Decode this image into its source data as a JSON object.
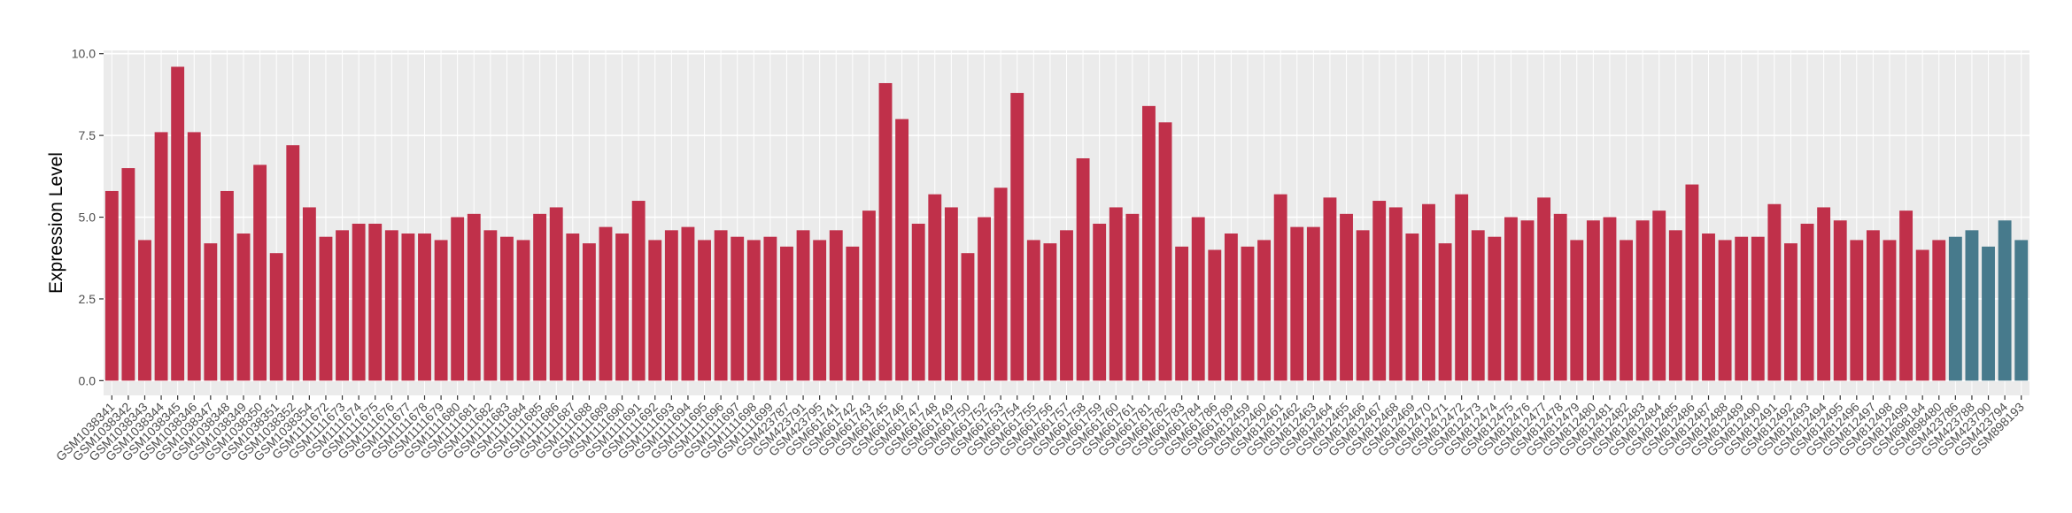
{
  "chart_data": {
    "type": "bar",
    "y_label": "Expression Level",
    "categories": [
      "GSM1038341",
      "GSM1038342",
      "GSM1038343",
      "GSM1038344",
      "GSM1038345",
      "GSM1038346",
      "GSM1038347",
      "GSM1038348",
      "GSM1038349",
      "GSM1038350",
      "GSM1038351",
      "GSM1038352",
      "GSM1038354",
      "GSM1111672",
      "GSM1111673",
      "GSM1111674",
      "GSM1111675",
      "GSM1111676",
      "GSM1111677",
      "GSM1111678",
      "GSM1111679",
      "GSM1111680",
      "GSM1111681",
      "GSM1111682",
      "GSM1111683",
      "GSM1111684",
      "GSM1111685",
      "GSM1111686",
      "GSM1111687",
      "GSM1111688",
      "GSM1111689",
      "GSM1111690",
      "GSM1111691",
      "GSM1111692",
      "GSM1111693",
      "GSM1111694",
      "GSM1111695",
      "GSM1111696",
      "GSM1111697",
      "GSM1111698",
      "GSM1111699",
      "GSM423787",
      "GSM423791",
      "GSM423795",
      "GSM661741",
      "GSM661742",
      "GSM661743",
      "GSM661745",
      "GSM661746",
      "GSM661747",
      "GSM661748",
      "GSM661749",
      "GSM661750",
      "GSM661752",
      "GSM661753",
      "GSM661754",
      "GSM661755",
      "GSM661756",
      "GSM661757",
      "GSM661758",
      "GSM661759",
      "GSM661760",
      "GSM661761",
      "GSM661781",
      "GSM661782",
      "GSM661783",
      "GSM661784",
      "GSM661786",
      "GSM661789",
      "GSM812459",
      "GSM812460",
      "GSM812461",
      "GSM812462",
      "GSM812463",
      "GSM812464",
      "GSM812465",
      "GSM812466",
      "GSM812467",
      "GSM812468",
      "GSM812469",
      "GSM812470",
      "GSM812471",
      "GSM812472",
      "GSM812473",
      "GSM812474",
      "GSM812475",
      "GSM812476",
      "GSM812477",
      "GSM812478",
      "GSM812479",
      "GSM812480",
      "GSM812481",
      "GSM812482",
      "GSM812483",
      "GSM812484",
      "GSM812485",
      "GSM812486",
      "GSM812487",
      "GSM812488",
      "GSM812489",
      "GSM812490",
      "GSM812491",
      "GSM812492",
      "GSM812493",
      "GSM812494",
      "GSM812495",
      "GSM812496",
      "GSM812497",
      "GSM812498",
      "GSM812499",
      "GSM898184",
      "GSM898480",
      "GSM423786",
      "GSM423788",
      "GSM423790",
      "GSM423794",
      "GSM898193"
    ],
    "values": [
      5.8,
      6.5,
      4.3,
      7.6,
      9.6,
      7.6,
      4.2,
      5.8,
      4.5,
      6.6,
      3.9,
      7.2,
      5.3,
      4.4,
      4.6,
      4.8,
      4.8,
      4.6,
      4.5,
      4.5,
      4.3,
      5.0,
      5.1,
      4.6,
      4.4,
      4.3,
      5.1,
      5.3,
      4.5,
      4.2,
      4.7,
      4.5,
      5.5,
      4.3,
      4.6,
      4.7,
      4.3,
      4.6,
      4.4,
      4.3,
      4.4,
      4.1,
      4.6,
      4.3,
      4.6,
      4.1,
      5.2,
      9.1,
      8.0,
      4.8,
      5.7,
      5.3,
      3.9,
      5.0,
      5.9,
      8.8,
      4.3,
      4.2,
      4.6,
      6.8,
      4.8,
      5.3,
      5.1,
      8.4,
      7.9,
      4.1,
      5.0,
      4.0,
      4.5,
      4.1,
      4.3,
      5.7,
      4.7,
      4.7,
      5.6,
      5.1,
      4.6,
      5.5,
      5.3,
      4.5,
      5.4,
      4.2,
      5.7,
      4.6,
      4.4,
      5.0,
      4.9,
      5.6,
      5.1,
      4.3,
      4.9,
      5.0,
      4.3,
      4.9,
      5.2,
      4.6,
      6.0,
      4.5,
      4.3,
      4.4,
      4.4,
      5.4,
      4.2,
      4.8,
      5.3,
      4.9,
      4.3,
      4.6,
      4.3,
      5.2,
      4.0,
      4.3,
      4.4,
      4.6,
      4.1,
      4.9,
      4.3
    ],
    "colors": [
      "#C0304A",
      "#C0304A",
      "#C0304A",
      "#C0304A",
      "#C0304A",
      "#C0304A",
      "#C0304A",
      "#C0304A",
      "#C0304A",
      "#C0304A",
      "#C0304A",
      "#C0304A",
      "#C0304A",
      "#C0304A",
      "#C0304A",
      "#C0304A",
      "#C0304A",
      "#C0304A",
      "#C0304A",
      "#C0304A",
      "#C0304A",
      "#C0304A",
      "#C0304A",
      "#C0304A",
      "#C0304A",
      "#C0304A",
      "#C0304A",
      "#C0304A",
      "#C0304A",
      "#C0304A",
      "#C0304A",
      "#C0304A",
      "#C0304A",
      "#C0304A",
      "#C0304A",
      "#C0304A",
      "#C0304A",
      "#C0304A",
      "#C0304A",
      "#C0304A",
      "#C0304A",
      "#C0304A",
      "#C0304A",
      "#C0304A",
      "#C0304A",
      "#C0304A",
      "#C0304A",
      "#C0304A",
      "#C0304A",
      "#C0304A",
      "#C0304A",
      "#C0304A",
      "#C0304A",
      "#C0304A",
      "#C0304A",
      "#C0304A",
      "#C0304A",
      "#C0304A",
      "#C0304A",
      "#C0304A",
      "#C0304A",
      "#C0304A",
      "#C0304A",
      "#C0304A",
      "#C0304A",
      "#C0304A",
      "#C0304A",
      "#C0304A",
      "#C0304A",
      "#C0304A",
      "#C0304A",
      "#C0304A",
      "#C0304A",
      "#C0304A",
      "#C0304A",
      "#C0304A",
      "#C0304A",
      "#C0304A",
      "#C0304A",
      "#C0304A",
      "#C0304A",
      "#C0304A",
      "#C0304A",
      "#C0304A",
      "#C0304A",
      "#C0304A",
      "#C0304A",
      "#C0304A",
      "#C0304A",
      "#C0304A",
      "#C0304A",
      "#C0304A",
      "#C0304A",
      "#C0304A",
      "#C0304A",
      "#C0304A",
      "#C0304A",
      "#C0304A",
      "#C0304A",
      "#C0304A",
      "#C0304A",
      "#C0304A",
      "#C0304A",
      "#C0304A",
      "#C0304A",
      "#C0304A",
      "#C0304A",
      "#C0304A",
      "#C0304A",
      "#C0304A",
      "#C0304A",
      "#C0304A",
      "#477A8C",
      "#477A8C",
      "#477A8C",
      "#477A8C",
      "#477A8C"
    ],
    "ylim": [
      -0.45,
      10.1
    ],
    "yticks": [
      {
        "value": 0,
        "label": "0.0"
      },
      {
        "value": 2.5,
        "label": "2.5"
      },
      {
        "value": 5,
        "label": "5.0"
      },
      {
        "value": 7.5,
        "label": "7.5"
      },
      {
        "value": 10,
        "label": "10.0"
      }
    ],
    "grid": true
  }
}
